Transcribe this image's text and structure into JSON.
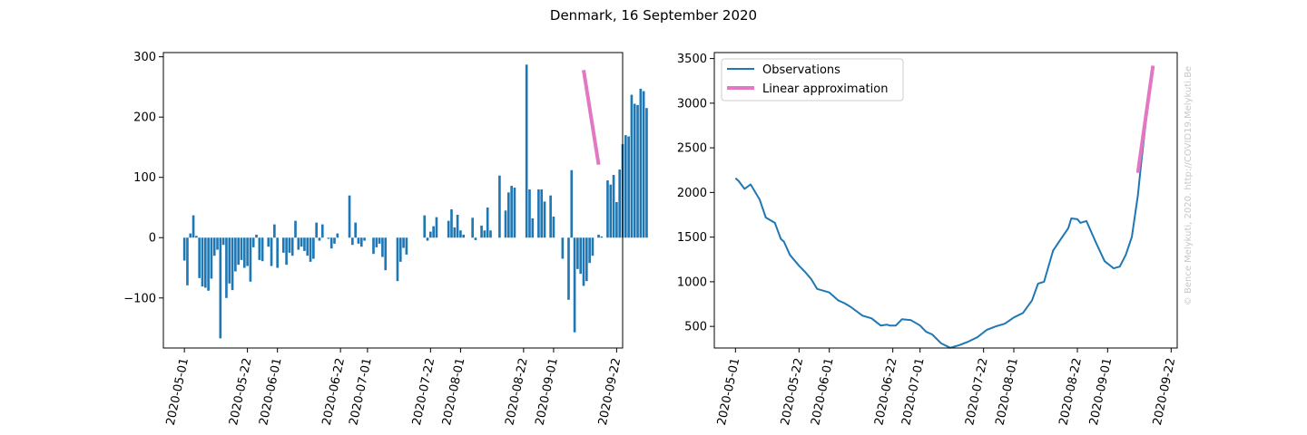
{
  "figure": {
    "title": "Denmark, 16 September 2020",
    "watermark": "© Bence Melykuti, 2020. http://COVID19.Melykuti.Be"
  },
  "chart_data": [
    {
      "type": "bar",
      "name": "",
      "start_date": "2020-05-01",
      "color": "#1f77b4",
      "xlim": [
        "2020-04-24",
        "2020-09-24"
      ],
      "ylim": [
        -183,
        307
      ],
      "x_ticks": [
        "2020-05-01",
        "2020-05-22",
        "2020-06-01",
        "2020-06-22",
        "2020-07-01",
        "2020-07-22",
        "2020-08-01",
        "2020-08-22",
        "2020-09-01",
        "2020-09-22"
      ],
      "y_ticks": [
        -100,
        0,
        100,
        200,
        300
      ],
      "values": [
        -38,
        -79,
        7,
        37,
        3,
        -67,
        -81,
        -83,
        -88,
        -68,
        -30,
        -20,
        -167,
        -12,
        -100,
        -76,
        -87,
        -56,
        -45,
        -37,
        -50,
        -47,
        -73,
        -16,
        5,
        -37,
        -39,
        0,
        -15,
        -47,
        22,
        -50,
        0,
        -25,
        -45,
        -25,
        -30,
        28,
        -20,
        -15,
        -22,
        -30,
        -40,
        -35,
        25,
        -5,
        22,
        0,
        -2,
        -18,
        -10,
        7,
        0,
        0,
        0,
        70,
        -12,
        25,
        -10,
        -15,
        -5,
        0,
        0,
        -27,
        -16,
        -10,
        -32,
        -54,
        0,
        0,
        0,
        -72,
        -40,
        -17,
        -28,
        0,
        0,
        0,
        0,
        0,
        37,
        -5,
        10,
        19,
        34,
        0,
        0,
        0,
        28,
        47,
        17,
        38,
        12,
        5,
        0,
        0,
        33,
        -4,
        0,
        20,
        12,
        50,
        12,
        0,
        0,
        103,
        0,
        45,
        75,
        86,
        83,
        0,
        0,
        0,
        287,
        80,
        32,
        0,
        80,
        80,
        60,
        0,
        70,
        35,
        0,
        0,
        -35,
        0,
        -103,
        112,
        -157,
        -52,
        -60,
        -80,
        -72,
        -42,
        -30,
        0,
        5,
        2,
        0,
        95,
        88,
        104,
        59,
        113,
        155,
        170,
        168,
        237,
        222,
        220,
        247,
        243,
        215
      ],
      "trend": {
        "name": "Linear approximation",
        "color": "#e377c2",
        "x": [
          "2020-09-11",
          "2020-09-16"
        ],
        "y": [
          278,
          121
        ]
      }
    },
    {
      "type": "line",
      "color": "#1f77b4",
      "xlim": [
        "2020-04-24",
        "2020-09-24"
      ],
      "ylim": [
        258,
        3567
      ],
      "x_ticks": [
        "2020-05-01",
        "2020-05-22",
        "2020-06-01",
        "2020-06-22",
        "2020-07-01",
        "2020-07-22",
        "2020-08-01",
        "2020-08-22",
        "2020-09-01",
        "2020-09-22"
      ],
      "y_ticks": [
        500,
        1000,
        1500,
        2000,
        2500,
        3000,
        3500
      ],
      "series": [
        {
          "name": "Observations",
          "x": [
            "2020-05-01",
            "2020-05-02",
            "2020-05-04",
            "2020-05-06",
            "2020-05-09",
            "2020-05-11",
            "2020-05-14",
            "2020-05-16",
            "2020-05-17",
            "2020-05-19",
            "2020-05-22",
            "2020-05-24",
            "2020-05-26",
            "2020-05-28",
            "2020-06-01",
            "2020-06-04",
            "2020-06-06",
            "2020-06-08",
            "2020-06-12",
            "2020-06-15",
            "2020-06-18",
            "2020-06-20",
            "2020-06-21",
            "2020-06-23",
            "2020-06-25",
            "2020-06-28",
            "2020-07-01",
            "2020-07-03",
            "2020-07-05",
            "2020-07-08",
            "2020-07-11",
            "2020-07-14",
            "2020-07-17",
            "2020-07-20",
            "2020-07-23",
            "2020-07-26",
            "2020-07-29",
            "2020-08-01",
            "2020-08-04",
            "2020-08-07",
            "2020-08-09",
            "2020-08-11",
            "2020-08-14",
            "2020-08-17",
            "2020-08-19",
            "2020-08-20",
            "2020-08-22",
            "2020-08-23",
            "2020-08-25",
            "2020-08-28",
            "2020-08-31",
            "2020-09-03",
            "2020-09-05",
            "2020-09-07",
            "2020-09-09",
            "2020-09-11",
            "2020-09-12",
            "2020-09-14",
            "2020-09-16"
          ],
          "y": [
            2160,
            2130,
            2040,
            2090,
            1920,
            1720,
            1660,
            1480,
            1450,
            1300,
            1180,
            1110,
            1030,
            920,
            880,
            790,
            760,
            720,
            620,
            590,
            510,
            520,
            510,
            510,
            580,
            570,
            510,
            440,
            410,
            310,
            260,
            290,
            330,
            380,
            460,
            500,
            530,
            600,
            650,
            790,
            980,
            1000,
            1350,
            1500,
            1600,
            1710,
            1700,
            1660,
            1680,
            1450,
            1230,
            1150,
            1170,
            1300,
            1500,
            1970,
            2300,
            2900,
            3380
          ]
        }
      ],
      "trend": {
        "name": "Linear approximation",
        "color": "#e377c2",
        "x": [
          "2020-09-11",
          "2020-09-16"
        ],
        "y": [
          2220,
          3420
        ]
      },
      "legend": {
        "position": "top-left",
        "entries": [
          "Observations",
          "Linear approximation"
        ]
      }
    }
  ]
}
